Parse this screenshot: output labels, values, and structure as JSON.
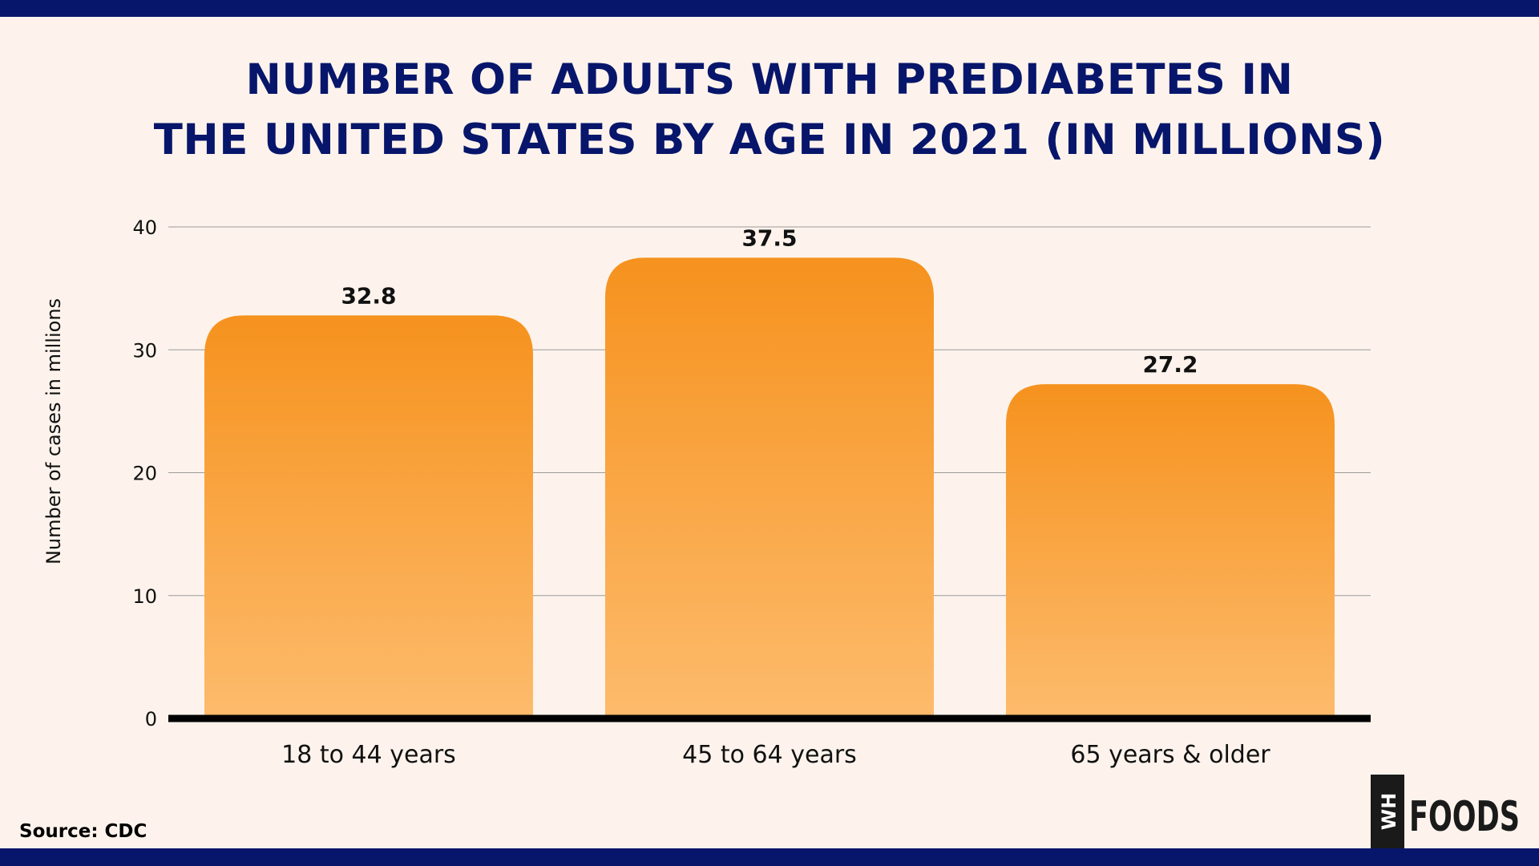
{
  "title": {
    "line1": "NUMBER OF ADULTS WITH PREDIABETES IN",
    "line2": "THE UNITED STATES BY AGE IN 2021 (IN MILLIONS)"
  },
  "source": "Source: CDC",
  "logo": {
    "box_text": "WH",
    "word": "FOODS"
  },
  "colors": {
    "title": "#07166b",
    "band": "#07166b",
    "background": "#fdf3ec",
    "bar_top": "#f6921e",
    "bar_bottom": "#fdbb6c"
  },
  "chart_data": {
    "type": "bar",
    "title": "NUMBER OF ADULTS WITH PREDIABETES IN THE UNITED STATES BY AGE IN 2021 (IN MILLIONS)",
    "categories": [
      "18 to 44 years",
      "45 to 64 years",
      "65 years & older"
    ],
    "values": [
      32.8,
      37.5,
      27.2
    ],
    "value_labels": [
      "32.8",
      "37.5",
      "27.2"
    ],
    "xlabel": "",
    "ylabel": "Number of cases in millions",
    "ylim": [
      0,
      40
    ],
    "yticks": [
      0,
      10,
      20,
      30,
      40
    ],
    "grid": true,
    "legend": "none"
  }
}
